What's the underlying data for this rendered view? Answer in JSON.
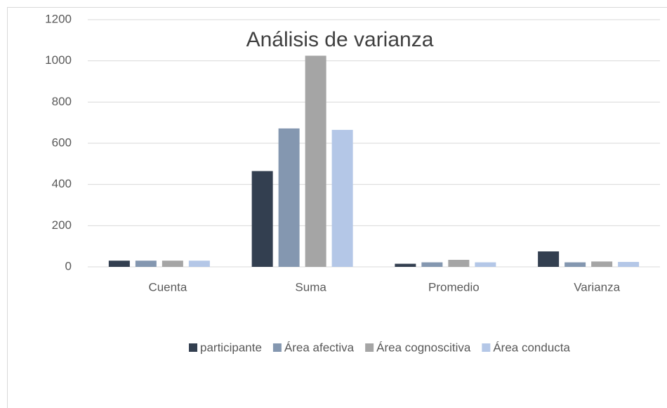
{
  "chart_data": {
    "type": "bar",
    "title": "Análisis de varianza",
    "categories": [
      "Cuenta",
      "Suma",
      "Promedio",
      "Varianza"
    ],
    "series": [
      {
        "name": "participante",
        "color": "#333f50",
        "values": [
          30,
          465,
          15,
          75
        ]
      },
      {
        "name": "Área afectiva",
        "color": "#8497b0",
        "values": [
          30,
          672,
          22,
          22
        ]
      },
      {
        "name": "Área cognoscitiva",
        "color": "#a5a5a5",
        "values": [
          30,
          1025,
          34,
          26
        ]
      },
      {
        "name": "Área conducta",
        "color": "#b4c7e7",
        "values": [
          30,
          665,
          22,
          24
        ]
      }
    ],
    "ylim": [
      0,
      1200
    ],
    "yticks": [
      0,
      200,
      400,
      600,
      800,
      1000,
      1200
    ],
    "grid": true,
    "legend": "bottom"
  }
}
